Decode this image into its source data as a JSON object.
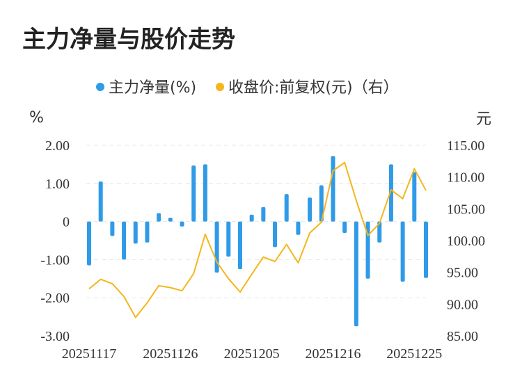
{
  "title": "主力净量与股价走势",
  "chart_data": {
    "type": "bar+line",
    "legend": [
      {
        "label": "主力净量(%)",
        "color": "#2f9be8"
      },
      {
        "label": "收盘价:前复权(元)（右）",
        "color": "#f4b61a"
      }
    ],
    "y_left_unit": "%",
    "y_right_unit": "元",
    "y_left_ticks": [
      "2.00",
      "1.00",
      "0",
      "-1.00",
      "-2.00",
      "-3.00"
    ],
    "y_right_ticks": [
      "115.00",
      "110.00",
      "105.00",
      "100.00",
      "95.00",
      "90.00",
      "85.00"
    ],
    "y_left_range": [
      -3,
      2
    ],
    "y_right_range": [
      85,
      115
    ],
    "x_tick_labels": [
      "20251117",
      "20251126",
      "20251205",
      "20251216",
      "20251225"
    ],
    "x_tick_index": [
      0,
      7,
      14,
      21,
      28
    ],
    "series": [
      {
        "name": "主力净量(%)",
        "kind": "bar",
        "color": "#2f9be8",
        "values": [
          -1.15,
          1.05,
          -0.38,
          -1.0,
          -0.58,
          -0.55,
          0.22,
          0.1,
          -0.13,
          1.47,
          1.5,
          -1.34,
          -0.92,
          -1.25,
          0.18,
          0.38,
          -0.67,
          0.72,
          -0.35,
          0.63,
          0.95,
          1.72,
          -0.3,
          -2.75,
          -1.5,
          -0.55,
          1.5,
          -1.58,
          1.3,
          -1.48
        ]
      },
      {
        "name": "收盘价:前复权(元)（右）",
        "kind": "line",
        "color": "#f4b61a",
        "values": [
          92.4,
          93.9,
          93.2,
          91.2,
          87.9,
          90.2,
          92.9,
          92.6,
          92.1,
          94.8,
          101.0,
          96.6,
          94.0,
          91.9,
          94.7,
          97.4,
          96.7,
          99.4,
          96.5,
          101.2,
          102.9,
          111.0,
          112.3,
          106.3,
          100.8,
          102.7,
          108.0,
          106.6,
          111.3,
          107.9
        ]
      }
    ]
  }
}
